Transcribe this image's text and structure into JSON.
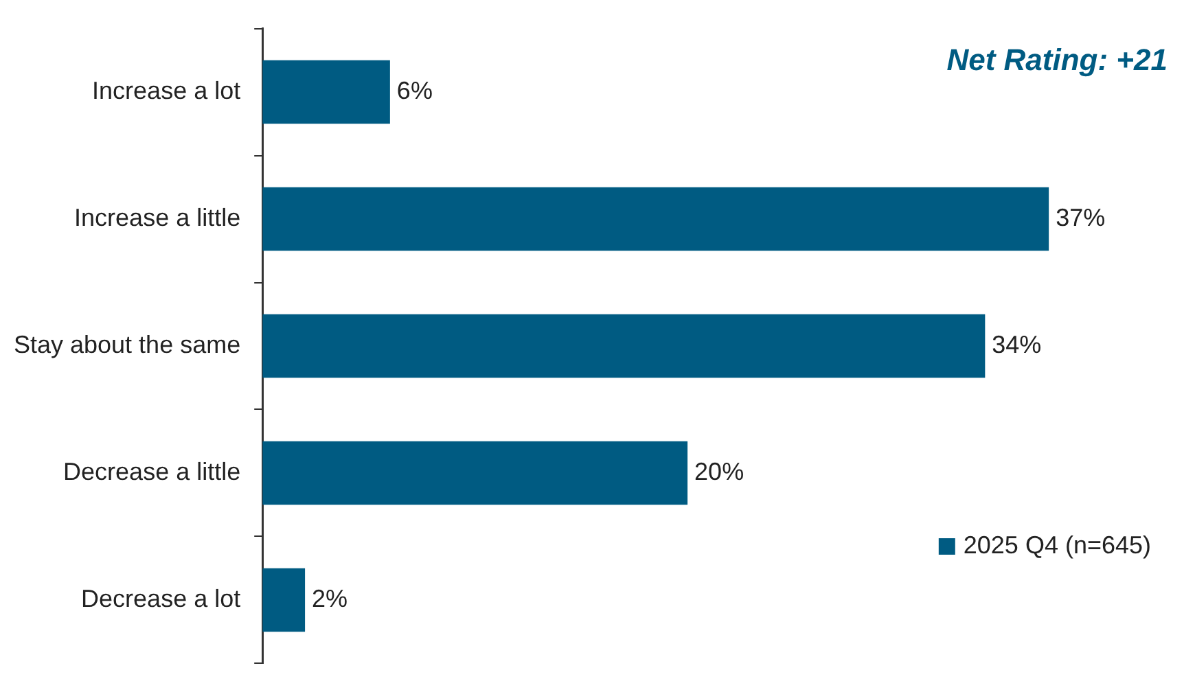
{
  "chart_data": {
    "type": "bar",
    "orientation": "horizontal",
    "categories": [
      "Increase a lot",
      "Increase a little",
      "Stay about the same",
      "Decrease a little",
      "Decrease a lot"
    ],
    "series": [
      {
        "name": "2025 Q4 (n=645)",
        "color": "#005b82",
        "values": [
          6,
          37,
          34,
          20,
          2
        ],
        "value_labels": [
          "6%",
          "37%",
          "34%",
          "20%",
          "2%"
        ]
      }
    ],
    "annotations": [
      "Net Rating: +21"
    ],
    "legend": "bottom right",
    "grid": false,
    "tick_labels": "y"
  }
}
